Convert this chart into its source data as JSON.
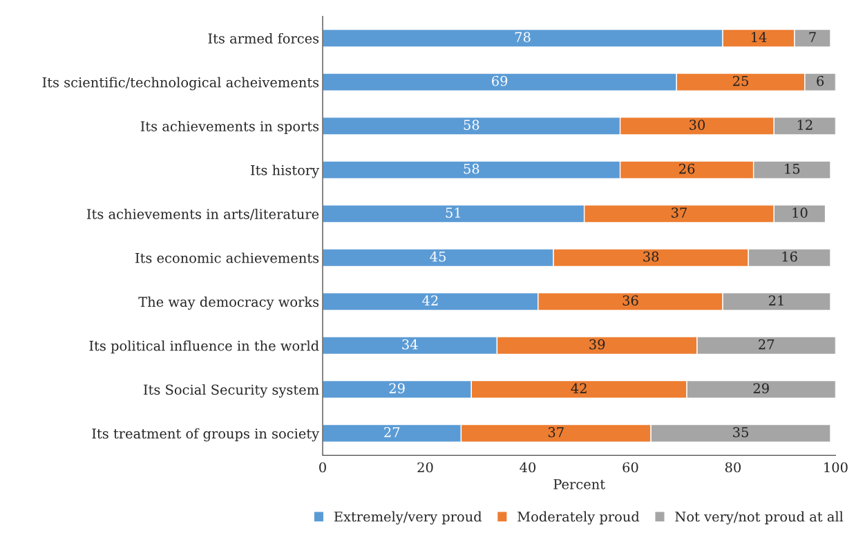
{
  "chart_data": {
    "type": "bar",
    "orientation": "horizontal",
    "stacked": true,
    "data_labels": true,
    "grid": false,
    "legend": "bottom",
    "xlabel": "Percent",
    "xlim": [
      0,
      100
    ],
    "xticks": [
      0,
      20,
      40,
      60,
      80,
      100
    ],
    "categories": [
      "Its armed forces",
      "Its scientific/technological acheivements",
      "Its achievements in sports",
      "Its history",
      "Its achievements in arts/literature",
      "Its economic achievements",
      "The way democracy works",
      "Its political influence in the world",
      "Its Social Security system",
      "Its treatment of groups in society"
    ],
    "series": [
      {
        "name": "Extremely/very proud",
        "color": "#5b9bd5",
        "values": [
          78,
          69,
          58,
          58,
          51,
          45,
          42,
          34,
          29,
          27
        ]
      },
      {
        "name": "Moderately proud",
        "color": "#ed7d31",
        "values": [
          14,
          25,
          30,
          26,
          37,
          38,
          36,
          39,
          42,
          37
        ]
      },
      {
        "name": "Not very/not proud at all",
        "color": "#a5a5a5",
        "values": [
          7,
          6,
          12,
          15,
          10,
          16,
          21,
          27,
          29,
          35
        ]
      }
    ]
  }
}
